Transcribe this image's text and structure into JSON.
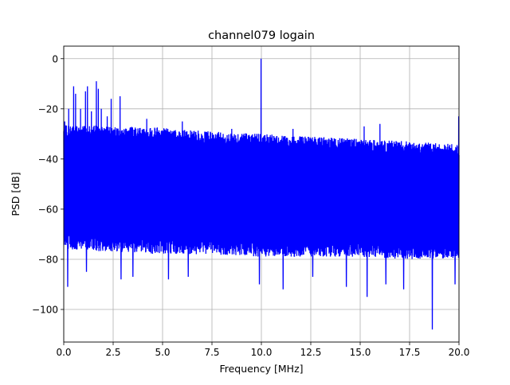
{
  "chart_data": {
    "type": "line",
    "title": "channel079 logain",
    "xlabel": "Frequency [MHz]",
    "ylabel": "PSD [dB]",
    "xlim": [
      0,
      20
    ],
    "ylim": [
      -113,
      5
    ],
    "x_ticks": [
      0,
      2.5,
      5,
      7.5,
      10,
      12.5,
      15,
      17.5,
      20
    ],
    "x_tick_labels": [
      "0.0",
      "2.5",
      "5.0",
      "7.5",
      "10.0",
      "12.5",
      "15.0",
      "17.5",
      "20.0"
    ],
    "y_ticks": [
      0,
      -20,
      -40,
      -60,
      -80,
      -100
    ],
    "y_tick_labels": [
      "0",
      "−20",
      "−40",
      "−60",
      "−80",
      "−100"
    ],
    "grid": true,
    "series": [
      {
        "color": "#0000ff",
        "noise_upper_envelope": {
          "x": [
            0,
            2.5,
            5,
            7.5,
            10,
            12.5,
            15,
            17.5,
            20
          ],
          "y": [
            -26,
            -27,
            -27.5,
            -29,
            -30,
            -31,
            -32,
            -33,
            -34
          ]
        },
        "noise_lower_envelope": {
          "x": [
            0,
            2.5,
            5,
            7.5,
            10,
            12.5,
            15,
            17.5,
            20
          ],
          "y": [
            -76,
            -77,
            -78,
            -78,
            -79,
            -79,
            -79,
            -80,
            -80
          ]
        },
        "peaks": [
          {
            "x": 0.05,
            "y": -25
          },
          {
            "x": 0.25,
            "y": -20
          },
          {
            "x": 0.5,
            "y": -11
          },
          {
            "x": 0.6,
            "y": -14
          },
          {
            "x": 0.85,
            "y": -20
          },
          {
            "x": 1.1,
            "y": -13
          },
          {
            "x": 1.2,
            "y": -11
          },
          {
            "x": 1.4,
            "y": -21
          },
          {
            "x": 1.65,
            "y": -9
          },
          {
            "x": 1.75,
            "y": -12
          },
          {
            "x": 1.9,
            "y": -20
          },
          {
            "x": 2.2,
            "y": -23
          },
          {
            "x": 2.4,
            "y": -16
          },
          {
            "x": 2.85,
            "y": -15
          },
          {
            "x": 3.5,
            "y": -24
          },
          {
            "x": 4.2,
            "y": -24
          },
          {
            "x": 6.0,
            "y": -25
          },
          {
            "x": 8.5,
            "y": -28
          },
          {
            "x": 9.98,
            "y": 0
          },
          {
            "x": 11.6,
            "y": -28
          },
          {
            "x": 15.2,
            "y": -27
          },
          {
            "x": 16.0,
            "y": -26
          },
          {
            "x": 19.98,
            "y": -23
          }
        ],
        "dips": [
          {
            "x": 0.2,
            "y": -91
          },
          {
            "x": 1.15,
            "y": -85
          },
          {
            "x": 2.9,
            "y": -88
          },
          {
            "x": 3.5,
            "y": -87
          },
          {
            "x": 5.3,
            "y": -88
          },
          {
            "x": 6.3,
            "y": -87
          },
          {
            "x": 9.9,
            "y": -90
          },
          {
            "x": 11.1,
            "y": -92
          },
          {
            "x": 12.6,
            "y": -87
          },
          {
            "x": 14.3,
            "y": -91
          },
          {
            "x": 15.35,
            "y": -95
          },
          {
            "x": 16.3,
            "y": -90
          },
          {
            "x": 17.2,
            "y": -92
          },
          {
            "x": 18.65,
            "y": -108
          },
          {
            "x": 19.8,
            "y": -90
          }
        ]
      }
    ]
  }
}
